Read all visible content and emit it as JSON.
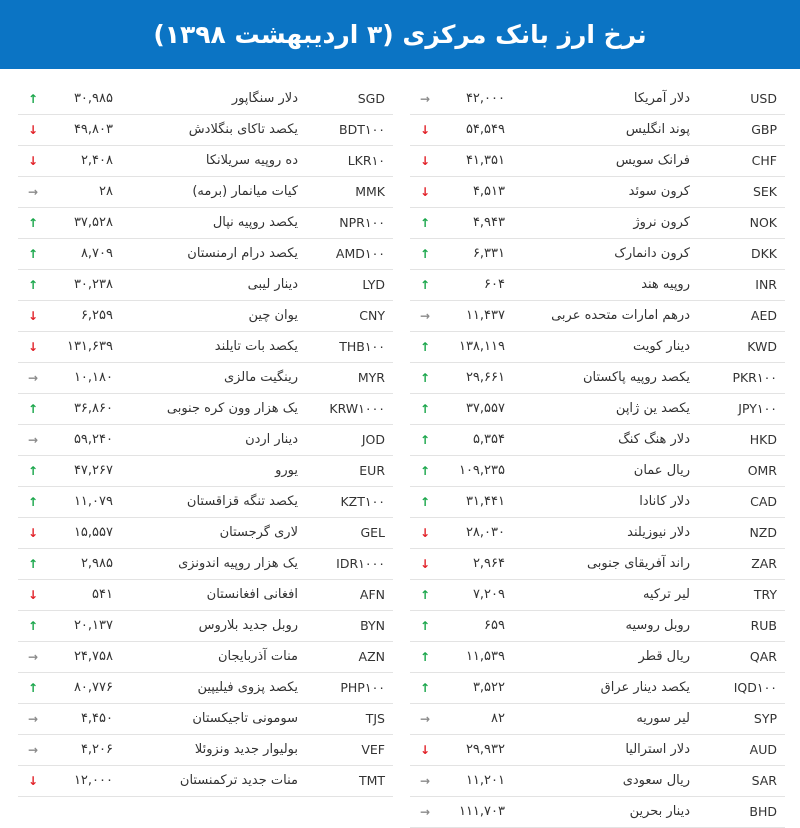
{
  "header": {
    "title": "نرخ ارز بانک مرکزی (۳ اردیبهشت ۱۳۹۸)"
  },
  "colors": {
    "header_bg": "#0b74c4",
    "up": "#19a64a",
    "down": "#e2232a",
    "flat": "#8a8a8a"
  },
  "right_column": [
    {
      "code": "USD",
      "name": "دلار آمریکا",
      "value": "۴۲,۰۰۰",
      "trend": "flat"
    },
    {
      "code": "GBP",
      "name": "پوند انگلیس",
      "value": "۵۴,۵۴۹",
      "trend": "down"
    },
    {
      "code": "CHF",
      "name": "فرانک سویس",
      "value": "۴۱,۳۵۱",
      "trend": "down"
    },
    {
      "code": "SEK",
      "name": "کرون سوئد",
      "value": "۴,۵۱۳",
      "trend": "down"
    },
    {
      "code": "NOK",
      "name": "کرون نروژ",
      "value": "۴,۹۴۳",
      "trend": "up"
    },
    {
      "code": "DKK",
      "name": "کرون دانمارک",
      "value": "۶,۳۳۱",
      "trend": "up"
    },
    {
      "code": "INR",
      "name": "روپیه هند",
      "value": "۶۰۴",
      "trend": "up"
    },
    {
      "code": "AED",
      "name": "درهم امارات متحده عربی",
      "value": "۱۱,۴۳۷",
      "trend": "flat"
    },
    {
      "code": "KWD",
      "name": "دینار کویت",
      "value": "۱۳۸,۱۱۹",
      "trend": "up"
    },
    {
      "code": "PKR۱۰۰",
      "name": "یکصد روپیه پاکستان",
      "value": "۲۹,۶۶۱",
      "trend": "up"
    },
    {
      "code": "JPY۱۰۰",
      "name": "یکصد ین ژاپن",
      "value": "۳۷,۵۵۷",
      "trend": "up"
    },
    {
      "code": "HKD",
      "name": "دلار هنگ کنگ",
      "value": "۵,۳۵۴",
      "trend": "up"
    },
    {
      "code": "OMR",
      "name": "ریال عمان",
      "value": "۱۰۹,۲۳۵",
      "trend": "up"
    },
    {
      "code": "CAD",
      "name": "دلار کانادا",
      "value": "۳۱,۴۴۱",
      "trend": "up"
    },
    {
      "code": "NZD",
      "name": "دلار نیوزیلند",
      "value": "۲۸,۰۳۰",
      "trend": "down"
    },
    {
      "code": "ZAR",
      "name": "راند آفریقای جنوبی",
      "value": "۲,۹۶۴",
      "trend": "down"
    },
    {
      "code": "TRY",
      "name": "لیر ترکیه",
      "value": "۷,۲۰۹",
      "trend": "up"
    },
    {
      "code": "RUB",
      "name": "روبل روسیه",
      "value": "۶۵۹",
      "trend": "up"
    },
    {
      "code": "QAR",
      "name": "ریال قطر",
      "value": "۱۱,۵۳۹",
      "trend": "up"
    },
    {
      "code": "IQD۱۰۰",
      "name": "یکصد دینار عراق",
      "value": "۳,۵۲۲",
      "trend": "up"
    },
    {
      "code": "SYP",
      "name": "لیر سوریه",
      "value": "۸۲",
      "trend": "flat"
    },
    {
      "code": "AUD",
      "name": "دلار استرالیا",
      "value": "۲۹,۹۳۲",
      "trend": "down"
    },
    {
      "code": "SAR",
      "name": "ریال سعودی",
      "value": "۱۱,۲۰۱",
      "trend": "flat"
    },
    {
      "code": "BHD",
      "name": "دینار بحرین",
      "value": "۱۱۱,۷۰۳",
      "trend": "flat"
    }
  ],
  "left_column": [
    {
      "code": "SGD",
      "name": "دلار سنگاپور",
      "value": "۳۰,۹۸۵",
      "trend": "up"
    },
    {
      "code": "BDT۱۰۰",
      "name": "یکصد تاکای بنگلادش",
      "value": "۴۹,۸۰۳",
      "trend": "down"
    },
    {
      "code": "LKR۱۰",
      "name": "ده روپیه سریلانکا",
      "value": "۲,۴۰۸",
      "trend": "down"
    },
    {
      "code": "MMK",
      "name": "کیات میانمار (برمه)",
      "value": "۲۸",
      "trend": "flat"
    },
    {
      "code": "NPR۱۰۰",
      "name": "یکصد روپیه نپال",
      "value": "۳۷,۵۲۸",
      "trend": "up"
    },
    {
      "code": "AMD۱۰۰",
      "name": "یکصد درام ارمنستان",
      "value": "۸,۷۰۹",
      "trend": "up"
    },
    {
      "code": "LYD",
      "name": "دینار لیبی",
      "value": "۳۰,۲۳۸",
      "trend": "up"
    },
    {
      "code": "CNY",
      "name": "یوان چین",
      "value": "۶,۲۵۹",
      "trend": "down"
    },
    {
      "code": "THB۱۰۰",
      "name": "یکصد بات تایلند",
      "value": "۱۳۱,۶۳۹",
      "trend": "down"
    },
    {
      "code": "MYR",
      "name": "رینگیت مالزی",
      "value": "۱۰,۱۸۰",
      "trend": "flat"
    },
    {
      "code": "KRW۱۰۰۰",
      "name": "یک هزار وون کره جنوبی",
      "value": "۳۶,۸۶۰",
      "trend": "up"
    },
    {
      "code": "JOD",
      "name": "دینار اردن",
      "value": "۵۹,۲۴۰",
      "trend": "flat"
    },
    {
      "code": "EUR",
      "name": "یورو",
      "value": "۴۷,۲۶۷",
      "trend": "up"
    },
    {
      "code": "KZT۱۰۰",
      "name": "یکصد تنگه قزاقستان",
      "value": "۱۱,۰۷۹",
      "trend": "up"
    },
    {
      "code": "GEL",
      "name": "لاری گرجستان",
      "value": "۱۵,۵۵۷",
      "trend": "down"
    },
    {
      "code": "IDR۱۰۰۰",
      "name": "یک هزار روپیه اندونزی",
      "value": "۲,۹۸۵",
      "trend": "up"
    },
    {
      "code": "AFN",
      "name": "افغانی افغانستان",
      "value": "۵۴۱",
      "trend": "down"
    },
    {
      "code": "BYN",
      "name": "روبل جدید بلاروس",
      "value": "۲۰,۱۳۷",
      "trend": "up"
    },
    {
      "code": "AZN",
      "name": "منات آذربایجان",
      "value": "۲۴,۷۵۸",
      "trend": "flat"
    },
    {
      "code": "PHP۱۰۰",
      "name": "یکصد پزوی فیلیپین",
      "value": "۸۰,۷۷۶",
      "trend": "up"
    },
    {
      "code": "TJS",
      "name": "سومونی تاجیکستان",
      "value": "۴,۴۵۰",
      "trend": "flat"
    },
    {
      "code": "VEF",
      "name": "بولیوار جدید ونزوئلا",
      "value": "۴,۲۰۶",
      "trend": "flat"
    },
    {
      "code": "TMT",
      "name": "منات جدید ترکمنستان",
      "value": "۱۲,۰۰۰",
      "trend": "down"
    }
  ]
}
